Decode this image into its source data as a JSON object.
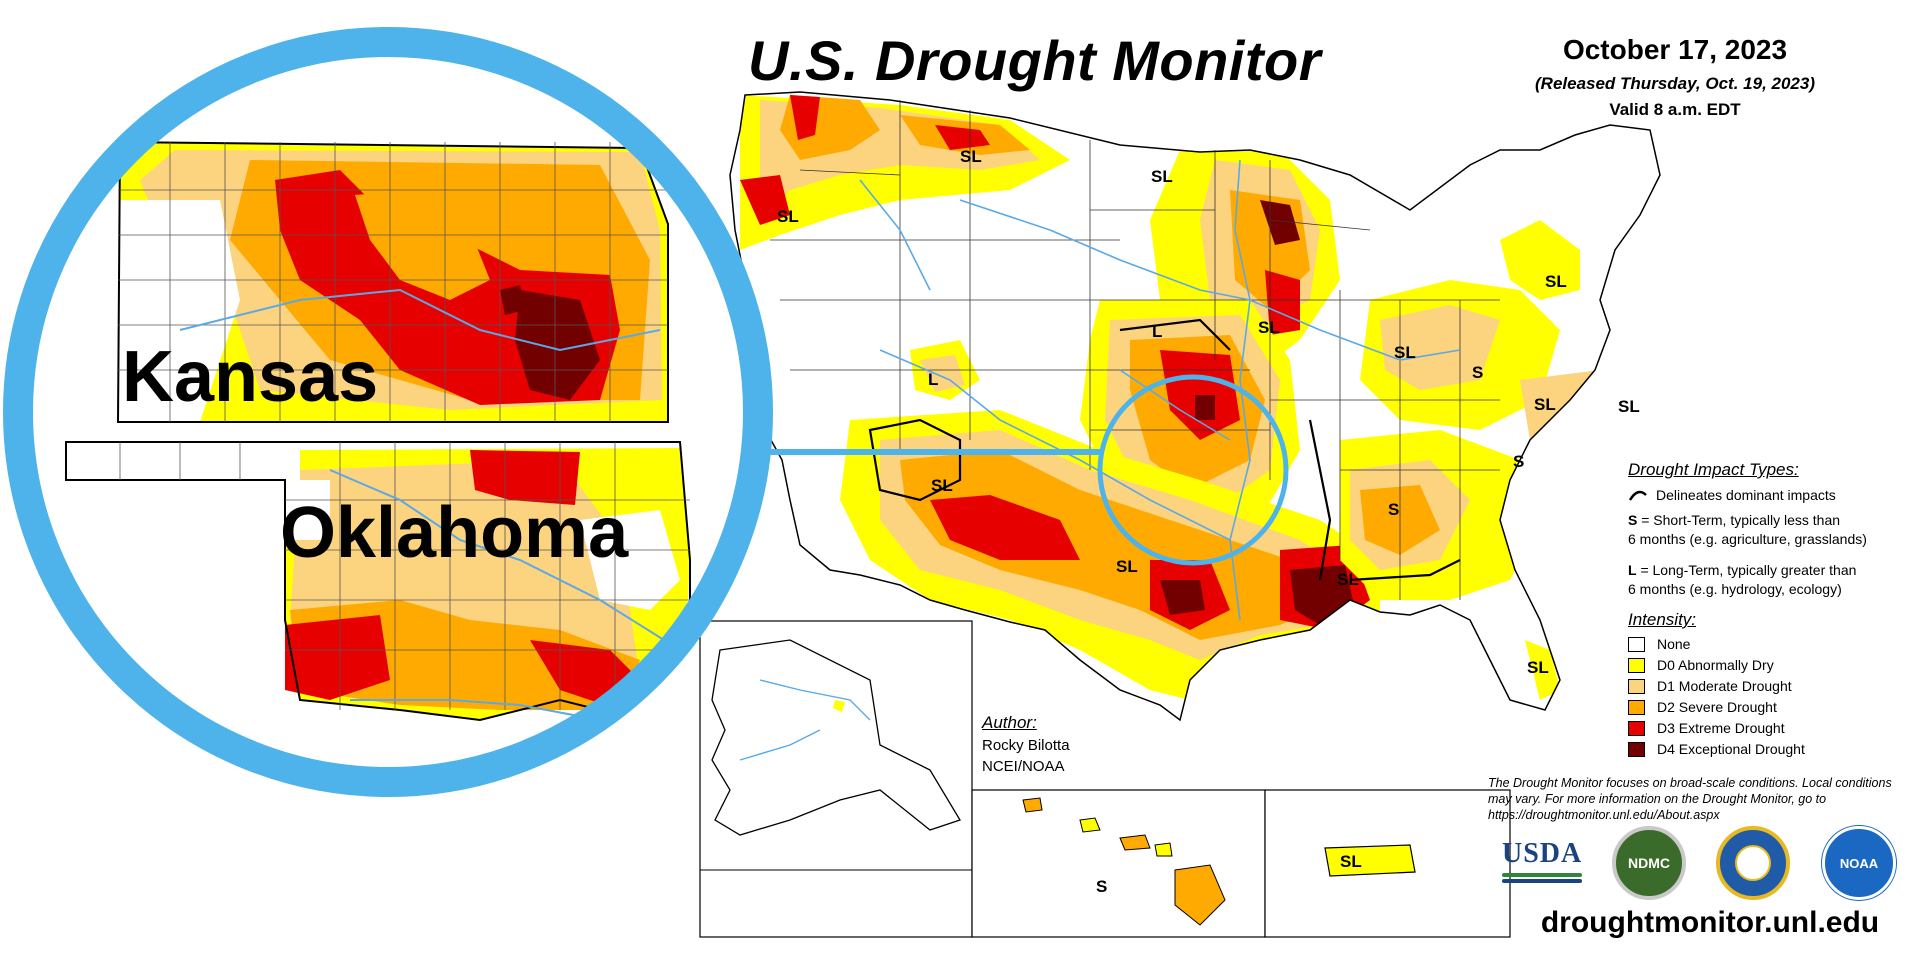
{
  "title": "U.S. Drought Monitor",
  "date": "October 17, 2023",
  "released": "(Released Thursday, Oct. 19, 2023)",
  "valid": "Valid 8 a.m. EDT",
  "zoom": {
    "state_labels": [
      "Kansas",
      "Oklahoma"
    ]
  },
  "impact_types": {
    "heading": "Drought Impact Types:",
    "delineates": "Delineates dominant impacts",
    "short_term_key": "S",
    "short_term_line1": " = Short-Term, typically less than",
    "short_term_line2": "6 months (e.g. agriculture, grasslands)",
    "long_term_key": "L",
    "long_term_line1": " = Long-Term, typically greater than",
    "long_term_line2": "6 months (e.g. hydrology, ecology)"
  },
  "intensity": {
    "heading": "Intensity:",
    "levels": [
      {
        "label": "None",
        "color": "#ffffff"
      },
      {
        "label": "D0 Abnormally Dry",
        "color": "#ffff00"
      },
      {
        "label": "D1 Moderate Drought",
        "color": "#fcd37f"
      },
      {
        "label": "D2 Severe Drought",
        "color": "#ffaa00"
      },
      {
        "label": "D3 Extreme Drought",
        "color": "#e60000"
      },
      {
        "label": "D4 Exceptional Drought",
        "color": "#730000"
      }
    ]
  },
  "author": {
    "heading": "Author:",
    "name": "Rocky Bilotta",
    "org": "NCEI/NOAA"
  },
  "disclaimer": "The Drought Monitor focuses on broad-scale conditions. Local conditions may vary. For more information on the Drought Monitor, go to https://droughtmonitor.unl.edu/About.aspx",
  "url": "droughtmonitor.unl.edu",
  "logos": {
    "usda": "USDA",
    "ndmc": "NDMC",
    "noaa": "NOAA"
  },
  "map_labels": {
    "sl_nw": "SL",
    "sl_mt": "SL",
    "sl_nd": "SL",
    "l_ne": "L",
    "sl_ia": "SL",
    "sl_ny": "SL",
    "sl_oh": "SL",
    "s_pa": "S",
    "sl_va": "SL",
    "sl_md": "SL",
    "l_ut": "L",
    "sl_sw": "SL",
    "s_nc": "S",
    "s_al": "S",
    "sl_tx": "SL",
    "sl_la": "SL",
    "sl_fl": "SL",
    "s_hi": "S",
    "sl_pr": "SL"
  },
  "colors": {
    "magnifier": "#4db3ea",
    "d0": "#ffff00",
    "d1": "#fcd37f",
    "d2": "#ffaa00",
    "d3": "#e60000",
    "d4": "#730000",
    "river": "#5aa9e6"
  }
}
